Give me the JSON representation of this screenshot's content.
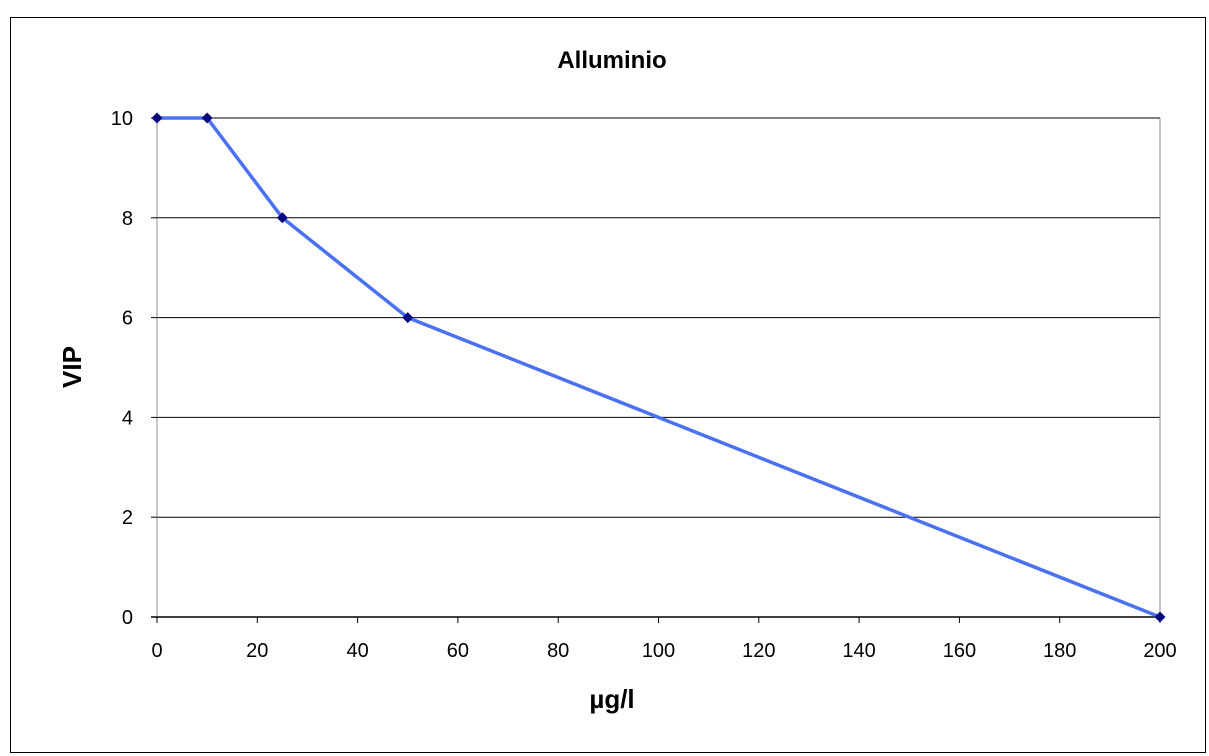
{
  "chart_data": {
    "type": "line",
    "title": "Alluminio",
    "xlabel": "µg/l",
    "ylabel": "VIP",
    "xlim": [
      0,
      200
    ],
    "ylim": [
      0,
      10
    ],
    "xticks": [
      0,
      20,
      40,
      60,
      80,
      100,
      120,
      140,
      160,
      180,
      200
    ],
    "yticks": [
      0,
      2,
      4,
      6,
      8,
      10
    ],
    "grid": "horizontal",
    "series": [
      {
        "x": [
          0,
          10,
          25,
          50,
          200
        ],
        "y": [
          10,
          10,
          8,
          6,
          0
        ],
        "line_color": "#4a72f0",
        "marker_color": "#0a0a80"
      }
    ]
  }
}
